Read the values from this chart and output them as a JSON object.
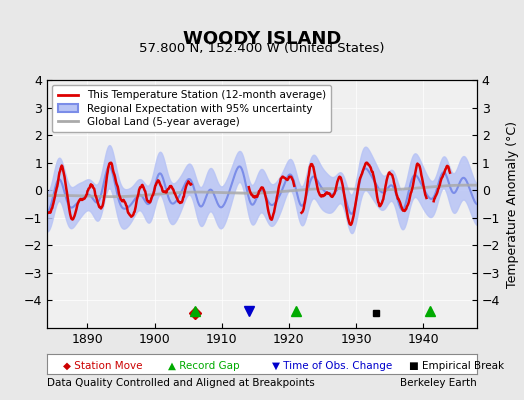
{
  "title": "WOODY ISLAND",
  "subtitle": "57.800 N, 152.400 W (United States)",
  "ylabel": "Temperature Anomaly (°C)",
  "xlabel_left": "Data Quality Controlled and Aligned at Breakpoints",
  "xlabel_right": "Berkeley Earth",
  "year_start": 1884,
  "year_end": 1948,
  "ylim": [
    -5,
    4
  ],
  "yticks": [
    -4,
    -3,
    -2,
    -1,
    0,
    1,
    2,
    3,
    4
  ],
  "xticks": [
    1890,
    1900,
    1910,
    1920,
    1930,
    1940
  ],
  "bg_color": "#e8e8e8",
  "plot_bg_color": "#f0f0f0",
  "regional_color": "#7b8de8",
  "regional_fill_color": "#b8c4f5",
  "station_color": "#dd0000",
  "global_color": "#aaaaaa",
  "marker_station_move": {
    "color": "#cc0000",
    "marker": "D",
    "year": 1906,
    "val": -4.6
  },
  "marker_record_gaps": [
    {
      "color": "#00aa00",
      "marker": "^",
      "year": 1906,
      "val": -4.4
    },
    {
      "color": "#00aa00",
      "marker": "^",
      "year": 1921,
      "val": -4.4
    },
    {
      "color": "#00aa00",
      "marker": "^",
      "year": 1941,
      "val": -4.4
    }
  ],
  "marker_obs_change": {
    "color": "#0000cc",
    "marker": "v",
    "year": 1914,
    "val": -4.4
  },
  "marker_emp_break": {
    "color": "#000000",
    "marker": "s",
    "year": 1933,
    "val": -4.6
  },
  "legend_items": [
    {
      "label": "This Temperature Station (12-month average)",
      "color": "#dd0000",
      "lw": 2
    },
    {
      "label": "Regional Expectation with 95% uncertainty",
      "color": "#7b8de8",
      "lw": 2
    },
    {
      "label": "Global Land (5-year average)",
      "color": "#aaaaaa",
      "lw": 2
    }
  ]
}
